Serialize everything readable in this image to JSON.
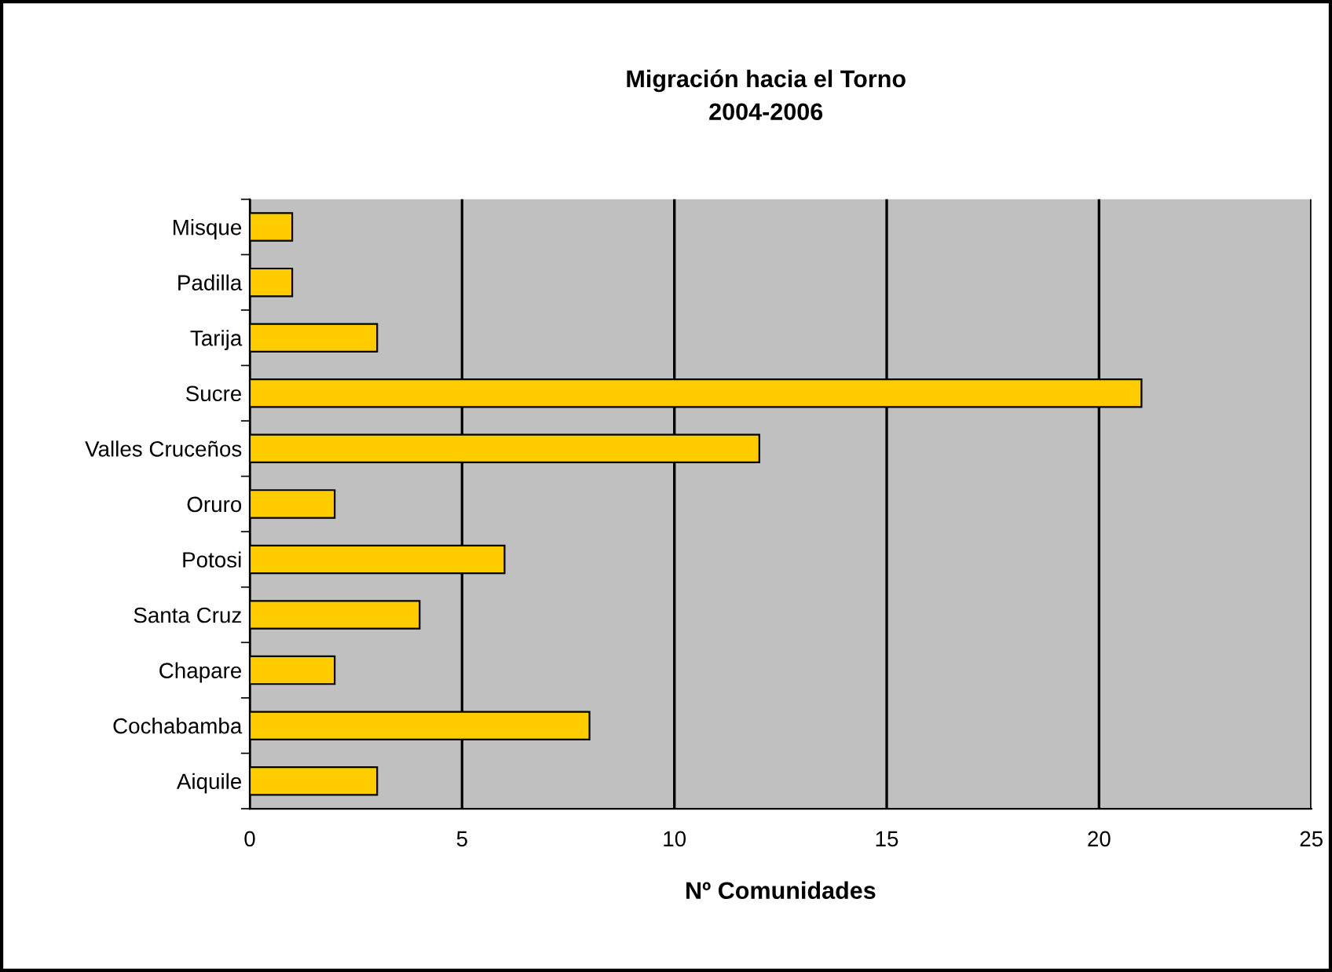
{
  "chart_data": {
    "type": "bar",
    "orientation": "horizontal",
    "title": "Migración hacia el Torno\n2004-2006",
    "xlabel": "Nº Comunidades",
    "categories": [
      "Misque",
      "Padilla",
      "Tarija",
      "Sucre",
      "Valles Cruceños",
      "Oruro",
      "Potosi",
      "Santa Cruz",
      "Chapare",
      "Cochabamba",
      "Aiquile"
    ],
    "values": [
      1,
      1,
      3,
      21,
      12,
      2,
      6,
      4,
      2,
      8,
      3
    ],
    "color": "#ffcc00",
    "xlim": [
      0,
      25
    ],
    "xticks": [
      0,
      5,
      10,
      15,
      20,
      25
    ],
    "grid": "x",
    "legend": false
  }
}
